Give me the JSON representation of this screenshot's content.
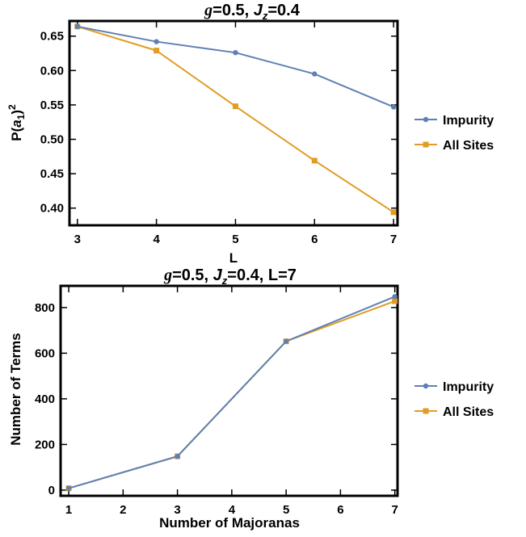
{
  "colors": {
    "impurity": "#5e81b5",
    "all_sites": "#e19c24",
    "frame": "#000000"
  },
  "chart_data": [
    {
      "type": "line",
      "title": "g=0.5, Jz=0.4",
      "title_parts": {
        "g": "g",
        "g_val": "=0.5, ",
        "J": "J",
        "J_sub": "z",
        "J_val": "=0.4"
      },
      "xlabel": "L",
      "ylabel": "P(a1)2",
      "ylabel_parts": {
        "a": "a",
        "sub": "1",
        "sup": "2"
      },
      "x": [
        3,
        4,
        5,
        6,
        7
      ],
      "xlim": [
        2.9,
        7.05
      ],
      "ylim": [
        0.375,
        0.672
      ],
      "xticks": [
        "3",
        "4",
        "5",
        "6",
        "7"
      ],
      "yticks": [
        "0.40",
        "0.45",
        "0.50",
        "0.55",
        "0.60",
        "0.65"
      ],
      "legend_position": "right",
      "series": [
        {
          "name": "Impurity",
          "marker": "circle",
          "values": [
            0.664,
            0.642,
            0.626,
            0.595,
            0.547
          ]
        },
        {
          "name": "All Sites",
          "marker": "square",
          "values": [
            0.664,
            0.629,
            0.548,
            0.469,
            0.394
          ]
        }
      ]
    },
    {
      "type": "line",
      "title": "g=0.5, Jz=0.4, L=7",
      "title_parts": {
        "g": "g",
        "g_val": "=0.5, ",
        "J": "J",
        "J_sub": "z",
        "J_val": "=0.4, L=7"
      },
      "xlabel": "Number of Majoranas",
      "ylabel": "Number of Terms",
      "x": [
        1,
        3,
        5,
        7
      ],
      "xlim": [
        0.85,
        7.05
      ],
      "ylim": [
        -25,
        895
      ],
      "xticks": [
        "1",
        "2",
        "3",
        "4",
        "5",
        "6",
        "7"
      ],
      "yticks": [
        "0",
        "200",
        "400",
        "600",
        "800"
      ],
      "legend_position": "right",
      "series": [
        {
          "name": "Impurity",
          "marker": "circle",
          "values": [
            8,
            148,
            652,
            848
          ]
        },
        {
          "name": "All Sites",
          "marker": "square",
          "values": [
            8,
            148,
            652,
            828
          ]
        }
      ]
    }
  ]
}
